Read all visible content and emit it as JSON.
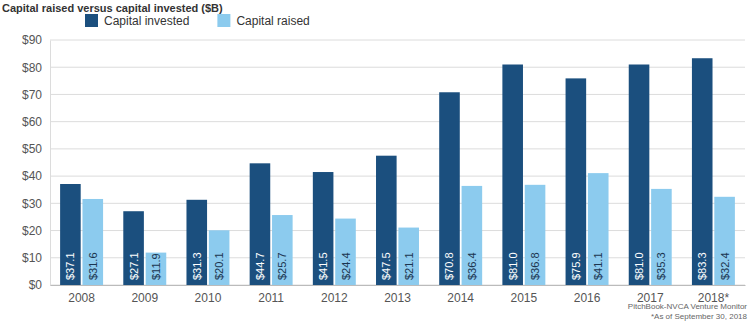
{
  "chart_data": {
    "type": "bar",
    "title": "Capital raised versus capital invested ($B)",
    "categories": [
      "2008",
      "2009",
      "2010",
      "2011",
      "2012",
      "2013",
      "2014",
      "2015",
      "2016",
      "2017",
      "2018*"
    ],
    "series": [
      {
        "name": "Capital invested",
        "color": "#1b4f7e",
        "values": [
          37.1,
          27.1,
          31.3,
          44.7,
          41.5,
          47.5,
          70.8,
          81.0,
          75.9,
          81.0,
          83.3
        ],
        "value_labels": [
          "$37.1",
          "$27.1",
          "$31.3",
          "$44.7",
          "$41.5",
          "$47.5",
          "$70.8",
          "$81.0",
          "$75.9",
          "$81.0",
          "$83.3"
        ]
      },
      {
        "name": "Capital raised",
        "color": "#8ccbee",
        "values": [
          31.6,
          11.9,
          20.1,
          25.7,
          24.4,
          21.1,
          36.4,
          36.8,
          41.1,
          35.3,
          32.4
        ],
        "value_labels": [
          "$31.6",
          "$11.9",
          "$20.1",
          "$25.7",
          "$24.4",
          "$21.1",
          "$36.4",
          "$36.8",
          "$41.1",
          "$35.3",
          "$32.4"
        ]
      }
    ],
    "ylim": [
      0,
      90
    ],
    "yticks": [
      {
        "value": 0,
        "label": "$0"
      },
      {
        "value": 10,
        "label": "$10"
      },
      {
        "value": 20,
        "label": "$20"
      },
      {
        "value": 30,
        "label": "$30"
      },
      {
        "value": 40,
        "label": "$40"
      },
      {
        "value": 50,
        "label": "$50"
      },
      {
        "value": 60,
        "label": "$60"
      },
      {
        "value": 70,
        "label": "$70"
      },
      {
        "value": 80,
        "label": "$80"
      },
      {
        "value": 90,
        "label": "$90"
      }
    ],
    "grid": true,
    "legend": "upper left",
    "data_labels": true,
    "annotations": [
      "PitchBook-NVCA Venture Monitor",
      "*As of September 30, 2018"
    ]
  }
}
